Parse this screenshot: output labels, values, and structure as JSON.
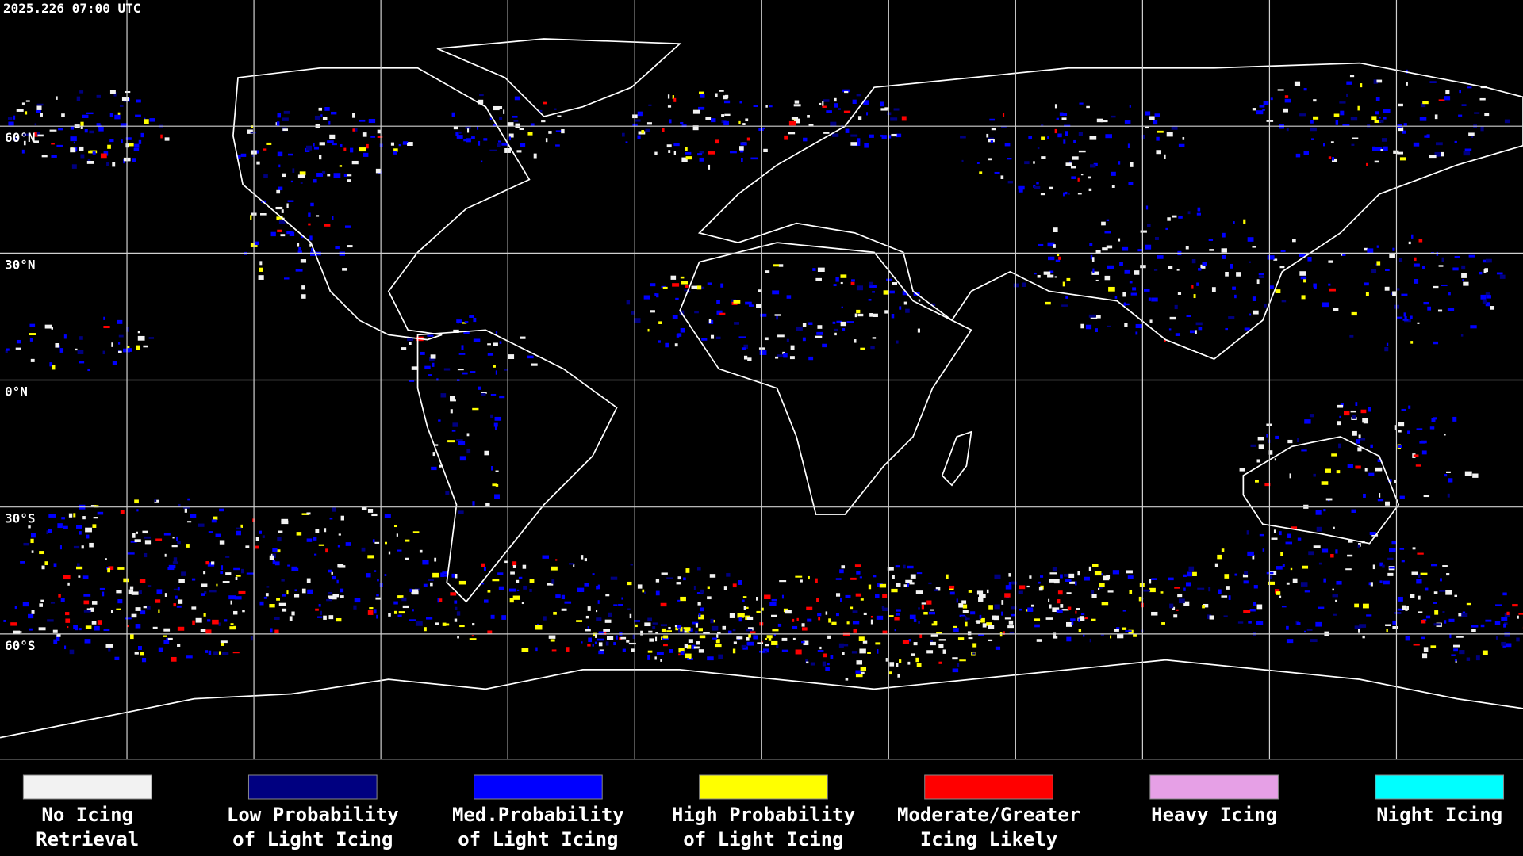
{
  "header": {
    "timestamp": "2025.226 07:00 UTC"
  },
  "map": {
    "latitude_labels": [
      "60°N",
      "30°N",
      "0°N",
      "30°S",
      "60°S"
    ]
  },
  "legend": [
    {
      "label": [
        "No Icing",
        "Retrieval"
      ],
      "color": "#f2f2f2"
    },
    {
      "label": [
        "Low Probability",
        "of Light Icing"
      ],
      "color": "#000080"
    },
    {
      "label": [
        "Med.Probability",
        "of Light Icing"
      ],
      "color": "#0000ff"
    },
    {
      "label": [
        "High Probability",
        "of Light Icing"
      ],
      "color": "#ffff00"
    },
    {
      "label": [
        "Moderate/Greater",
        "Icing Likely"
      ],
      "color": "#ff0000"
    },
    {
      "label": [
        "Heavy Icing"
      ],
      "color": "#e6a0e6"
    },
    {
      "label": [
        "Night Icing"
      ],
      "color": "#00ffff"
    }
  ]
}
